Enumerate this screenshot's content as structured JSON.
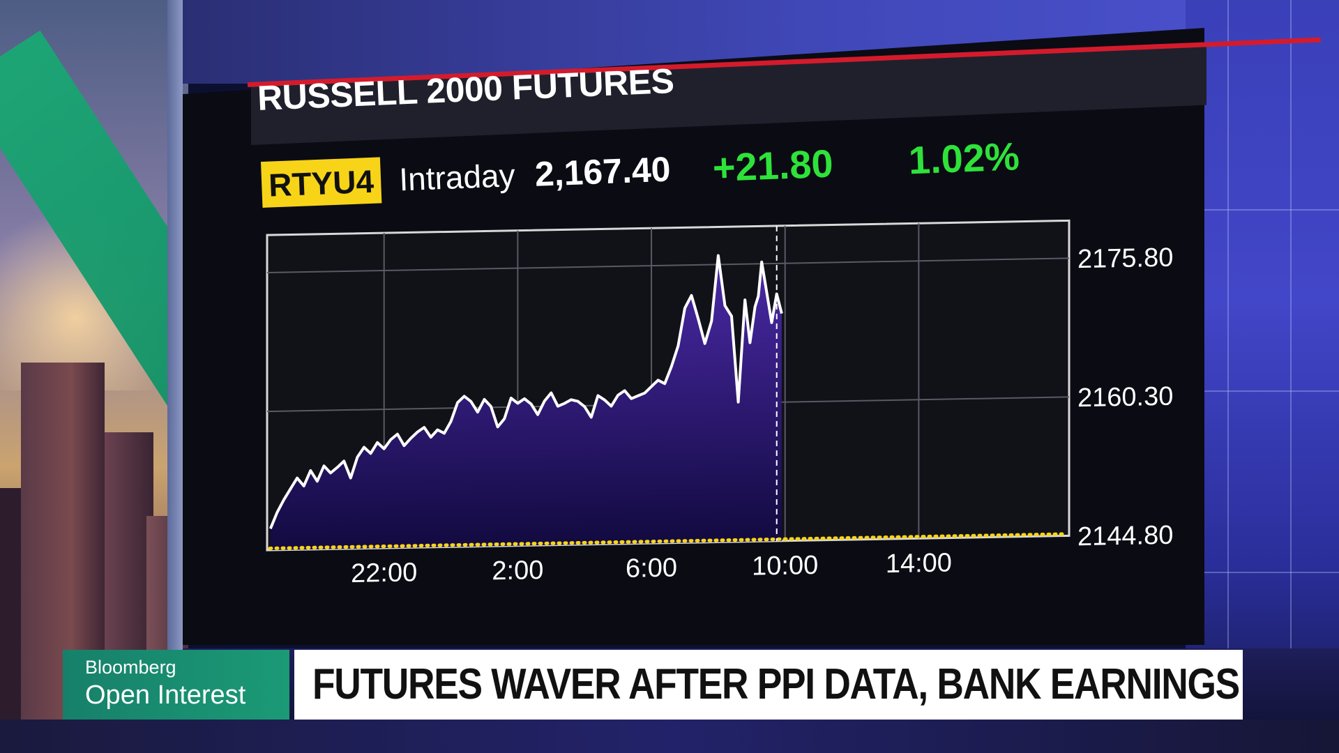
{
  "lower_third": {
    "brand_line1": "Bloomberg",
    "brand_line2": "Open Interest",
    "headline": "FUTURES WAVER AFTER PPI DATA, BANK EARNINGS"
  },
  "quote": {
    "ticker": "RTYU4",
    "period": "Intraday",
    "last": "2,167.40",
    "change": "+21.80",
    "pct_change": "1.02%"
  },
  "colors": {
    "title_bg": "#20202c",
    "accent_red": "#d41b2c",
    "ticker_bg": "#f7d418",
    "positive": "#2ee23a",
    "area_top": "#4b2aa8",
    "area_bottom": "#120a40",
    "reference_line": "#f7d418"
  },
  "chart_data": {
    "type": "area",
    "title": "RUSSELL 2000 FUTURES",
    "x_ticks": [
      "22:00",
      "2:00",
      "6:00",
      "10:00",
      "14:00"
    ],
    "y_ticks": [
      2175.8,
      2160.3,
      2144.8
    ],
    "y_tick_labels": [
      "2175.80",
      "2160.30",
      "2144.80"
    ],
    "ylim": [
      2144.8,
      2180.0
    ],
    "xlim_hours": [
      18.5,
      42.5
    ],
    "x_hours": [
      18.6,
      18.8,
      19.0,
      19.2,
      19.4,
      19.6,
      19.8,
      20.0,
      20.2,
      20.4,
      20.6,
      20.8,
      21.0,
      21.2,
      21.4,
      21.6,
      21.8,
      22.0,
      22.2,
      22.4,
      22.6,
      22.8,
      23.0,
      23.2,
      23.4,
      23.6,
      23.8,
      24.0,
      24.2,
      24.4,
      24.6,
      24.8,
      25.0,
      25.2,
      25.4,
      25.6,
      25.8,
      26.0,
      26.2,
      26.4,
      26.6,
      26.8,
      27.0,
      27.2,
      27.4,
      27.6,
      27.8,
      28.0,
      28.2,
      28.4,
      28.6,
      28.8,
      29.0,
      29.2,
      29.4,
      29.6,
      29.8,
      30.0,
      30.2,
      30.4,
      30.6,
      30.8,
      31.0,
      31.2,
      31.4,
      31.6,
      31.8,
      32.0,
      32.2,
      32.4,
      32.6,
      32.8,
      32.95,
      33.1,
      33.2,
      33.3,
      33.45,
      33.6,
      33.75,
      33.9
    ],
    "values": [
      2147.2,
      2149.0,
      2150.4,
      2151.6,
      2152.8,
      2151.9,
      2153.6,
      2152.4,
      2154.1,
      2153.3,
      2153.9,
      2154.6,
      2152.7,
      2155.0,
      2156.1,
      2155.4,
      2156.6,
      2155.9,
      2156.9,
      2157.5,
      2156.2,
      2157.0,
      2157.7,
      2158.2,
      2157.1,
      2157.9,
      2157.5,
      2158.8,
      2160.9,
      2161.6,
      2161.0,
      2159.8,
      2161.2,
      2160.4,
      2158.1,
      2159.0,
      2161.3,
      2160.7,
      2161.2,
      2160.6,
      2159.4,
      2160.9,
      2161.8,
      2160.3,
      2160.6,
      2161.0,
      2160.8,
      2160.2,
      2159.0,
      2161.4,
      2160.9,
      2160.2,
      2161.4,
      2161.9,
      2161.0,
      2161.3,
      2161.6,
      2162.3,
      2163.0,
      2162.6,
      2164.5,
      2166.8,
      2171.0,
      2172.4,
      2169.8,
      2167.0,
      2169.5,
      2176.8,
      2171.2,
      2170.0,
      2160.4,
      2171.8,
      2167.0,
      2171.0,
      2172.2,
      2176.0,
      2172.6,
      2169.2,
      2172.4,
      2170.2
    ],
    "reference_value": 2145.0,
    "current_time_hours": 33.75,
    "grid": true
  }
}
